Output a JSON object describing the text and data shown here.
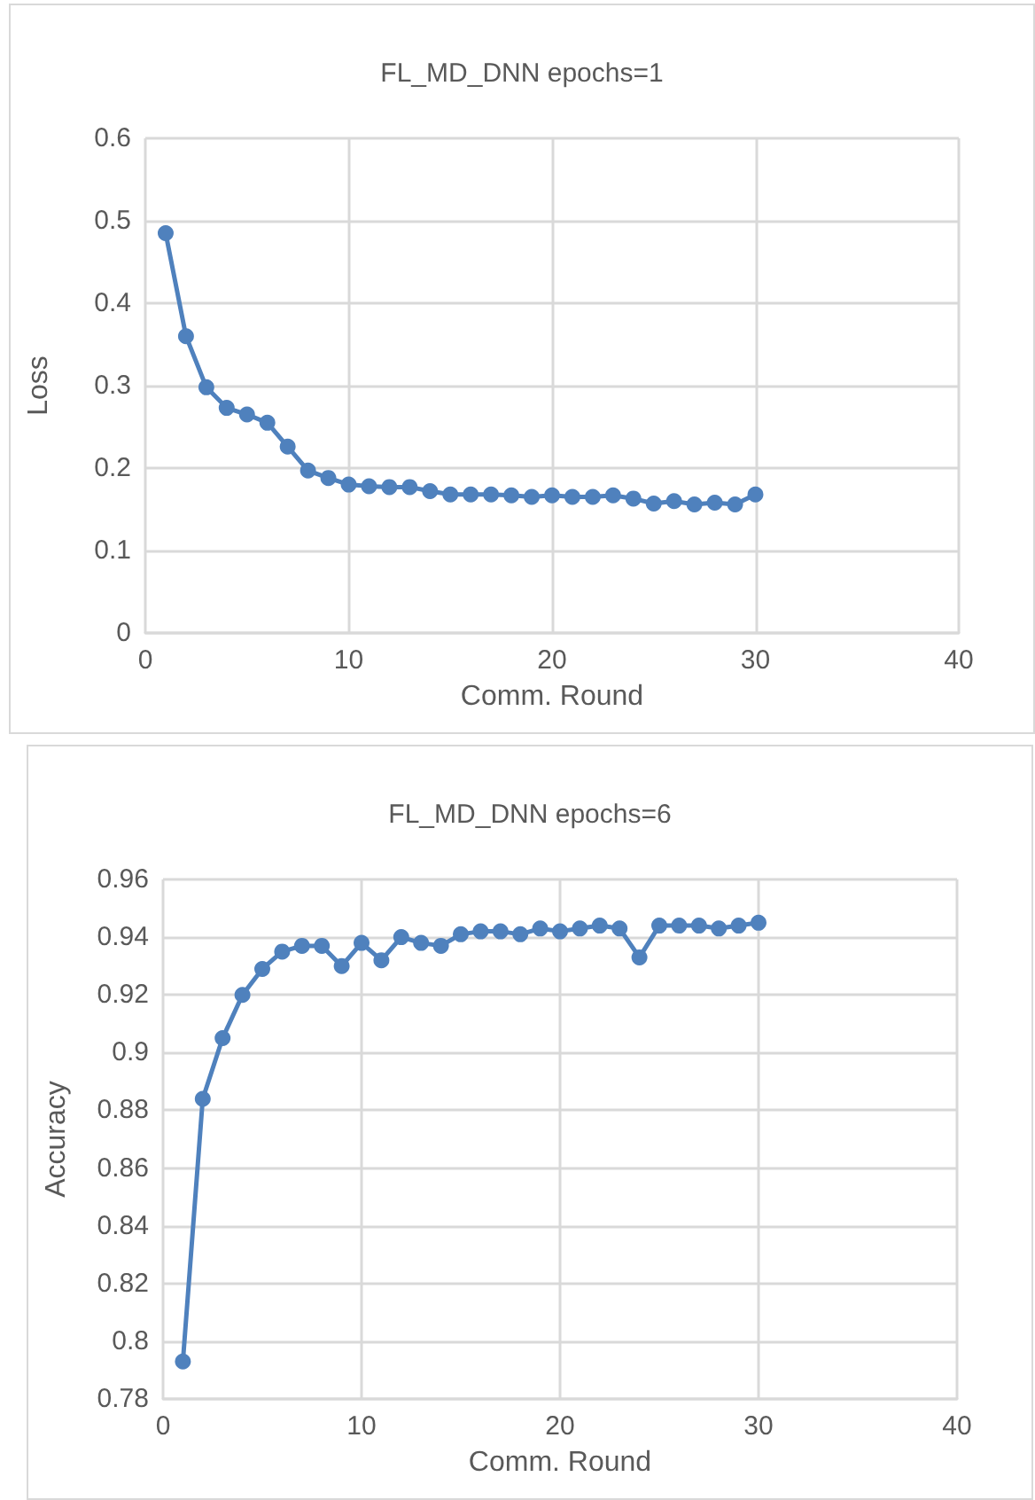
{
  "chart_data": [
    {
      "type": "line",
      "title": "FL_MD_DNN epochs=1",
      "xlabel": "Comm. Round",
      "ylabel": "Loss",
      "x": [
        1,
        2,
        3,
        4,
        5,
        6,
        7,
        8,
        9,
        10,
        11,
        12,
        13,
        14,
        15,
        16,
        17,
        18,
        19,
        20,
        21,
        22,
        23,
        24,
        25,
        26,
        27,
        28,
        29,
        30
      ],
      "series": [
        {
          "color": "#4f81bd",
          "values": [
            0.485,
            0.36,
            0.298,
            0.273,
            0.265,
            0.255,
            0.226,
            0.197,
            0.188,
            0.18,
            0.178,
            0.177,
            0.177,
            0.172,
            0.168,
            0.168,
            0.168,
            0.167,
            0.165,
            0.167,
            0.165,
            0.165,
            0.167,
            0.163,
            0.157,
            0.16,
            0.156,
            0.158,
            0.156,
            0.168
          ]
        }
      ],
      "xlim": [
        0,
        40
      ],
      "xticks": [
        0,
        10,
        20,
        30,
        40
      ],
      "ylim": [
        0,
        0.6
      ],
      "yticks": [
        0,
        0.1,
        0.2,
        0.3,
        0.4,
        0.5,
        0.6
      ],
      "grid": true,
      "marker": "circle",
      "line_style": "solid"
    },
    {
      "type": "line",
      "title": "FL_MD_DNN epochs=6",
      "xlabel": "Comm. Round",
      "ylabel": "Accuracy",
      "x": [
        1,
        2,
        3,
        4,
        5,
        6,
        7,
        8,
        9,
        10,
        11,
        12,
        13,
        14,
        15,
        16,
        17,
        18,
        19,
        20,
        21,
        22,
        23,
        24,
        25,
        26,
        27,
        28,
        29,
        30
      ],
      "series": [
        {
          "color": "#4f81bd",
          "values": [
            0.793,
            0.884,
            0.905,
            0.92,
            0.929,
            0.935,
            0.937,
            0.937,
            0.93,
            0.938,
            0.932,
            0.94,
            0.938,
            0.937,
            0.941,
            0.942,
            0.942,
            0.941,
            0.943,
            0.942,
            0.943,
            0.944,
            0.943,
            0.933,
            0.944,
            0.944,
            0.944,
            0.943,
            0.944,
            0.945
          ]
        }
      ],
      "xlim": [
        0,
        40
      ],
      "xticks": [
        0,
        10,
        20,
        30,
        40
      ],
      "ylim": [
        0.78,
        0.96
      ],
      "yticks": [
        0.78,
        0.8,
        0.82,
        0.84,
        0.86,
        0.88,
        0.9,
        0.92,
        0.94,
        0.96
      ],
      "grid": true,
      "marker": "circle",
      "line_style": "solid"
    }
  ]
}
